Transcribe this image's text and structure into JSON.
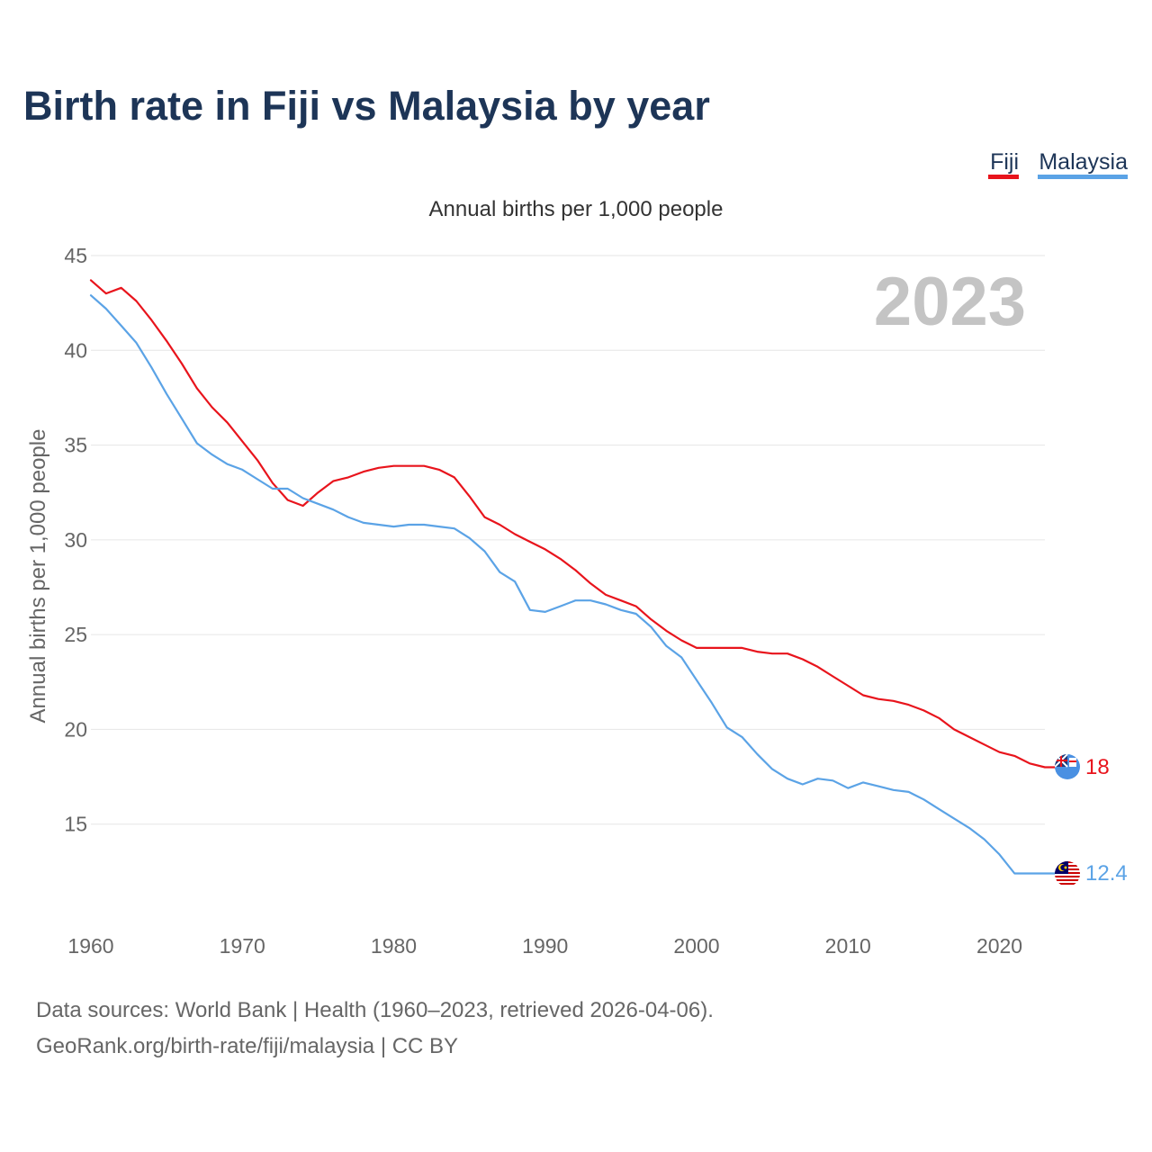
{
  "chart_data": {
    "type": "line",
    "title": "Birth rate in Fiji vs Malaysia by year",
    "subtitle": "Annual births per 1,000 people",
    "ylabel": "Annual births per 1,000 people",
    "xlabel": "",
    "watermark_year": "2023",
    "xlim": [
      1960,
      2023
    ],
    "ylim": [
      10,
      45
    ],
    "yticks": [
      15,
      20,
      25,
      30,
      35,
      40,
      45
    ],
    "xticks": [
      1960,
      1970,
      1980,
      1990,
      2000,
      2010,
      2020
    ],
    "x": [
      1960,
      1961,
      1962,
      1963,
      1964,
      1965,
      1966,
      1967,
      1968,
      1969,
      1970,
      1971,
      1972,
      1973,
      1974,
      1975,
      1976,
      1977,
      1978,
      1979,
      1980,
      1981,
      1982,
      1983,
      1984,
      1985,
      1986,
      1987,
      1988,
      1989,
      1990,
      1991,
      1992,
      1993,
      1994,
      1995,
      1996,
      1997,
      1998,
      1999,
      2000,
      2001,
      2002,
      2003,
      2004,
      2005,
      2006,
      2007,
      2008,
      2009,
      2010,
      2011,
      2012,
      2013,
      2014,
      2015,
      2016,
      2017,
      2018,
      2019,
      2020,
      2021,
      2022,
      2023
    ],
    "series": [
      {
        "name": "Fiji",
        "color": "#e8141c",
        "end_label": "18",
        "flag": "fiji-flag-icon",
        "values": [
          43.7,
          43.0,
          43.3,
          42.6,
          41.6,
          40.5,
          39.3,
          38.0,
          37.0,
          36.2,
          35.2,
          34.2,
          33.0,
          32.1,
          31.8,
          32.5,
          33.1,
          33.3,
          33.6,
          33.8,
          33.9,
          33.9,
          33.9,
          33.7,
          33.3,
          32.3,
          31.2,
          30.8,
          30.3,
          29.9,
          29.5,
          29.0,
          28.4,
          27.7,
          27.1,
          26.8,
          26.5,
          25.8,
          25.2,
          24.7,
          24.3,
          24.3,
          24.3,
          24.3,
          24.1,
          24.0,
          24.0,
          23.7,
          23.3,
          22.8,
          22.3,
          21.8,
          21.6,
          21.5,
          21.3,
          21.0,
          20.6,
          20.0,
          19.6,
          19.2,
          18.8,
          18.6,
          18.2,
          18.0
        ]
      },
      {
        "name": "Malaysia",
        "color": "#5ba3e6",
        "end_label": "12.4",
        "flag": "malaysia-flag-icon",
        "values": [
          42.9,
          42.2,
          41.3,
          40.4,
          39.1,
          37.7,
          36.4,
          35.1,
          34.5,
          34.0,
          33.7,
          33.2,
          32.7,
          32.7,
          32.2,
          31.9,
          31.6,
          31.2,
          30.9,
          30.8,
          30.7,
          30.8,
          30.8,
          30.7,
          30.6,
          30.1,
          29.4,
          28.3,
          27.8,
          26.3,
          26.2,
          26.5,
          26.8,
          26.8,
          26.6,
          26.3,
          26.1,
          25.4,
          24.4,
          23.8,
          22.6,
          21.4,
          20.1,
          19.6,
          18.7,
          17.9,
          17.4,
          17.1,
          17.4,
          17.3,
          16.9,
          17.2,
          17.0,
          16.8,
          16.7,
          16.3,
          15.8,
          15.3,
          14.8,
          14.2,
          13.4,
          12.4,
          12.4,
          12.4
        ]
      }
    ]
  },
  "footer": {
    "line1": "Data sources: World Bank | Health (1960–2023, retrieved 2026-04-06).",
    "line2": "GeoRank.org/birth-rate/fiji/malaysia | CC BY"
  }
}
